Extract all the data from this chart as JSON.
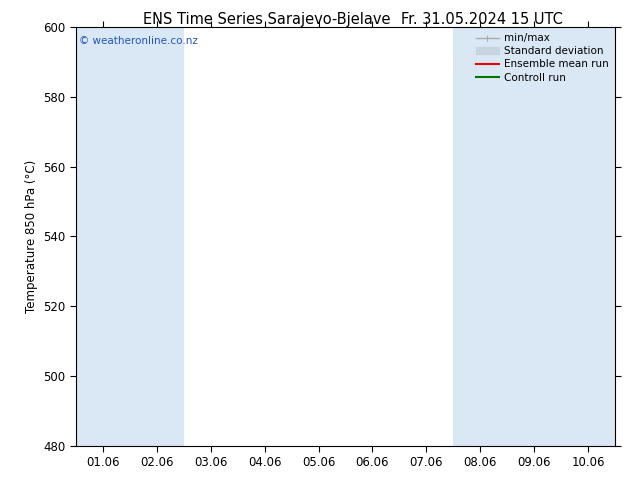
{
  "title": "ENS Time Series Sarajevo-Bjelave",
  "title2": "Fr. 31.05.2024 15 UTC",
  "ylabel": "Temperature 850 hPa (°C)",
  "ylim": [
    480,
    600
  ],
  "yticks": [
    480,
    500,
    520,
    540,
    560,
    580,
    600
  ],
  "x_labels": [
    "01.06",
    "02.06",
    "03.06",
    "04.06",
    "05.06",
    "06.06",
    "07.06",
    "08.06",
    "09.06",
    "10.06"
  ],
  "shaded_x_indices": [
    0,
    1,
    7,
    8,
    9
  ],
  "band_color": "#dae8f5",
  "bg_color": "#ffffff",
  "watermark": "© weatheronline.co.nz",
  "watermark_color": "#2255bb",
  "legend_items": [
    {
      "label": "min/max",
      "color": "#aaaaaa",
      "lw": 1.0
    },
    {
      "label": "Standard deviation",
      "color": "#c8d4e0",
      "lw": 5.0
    },
    {
      "label": "Ensemble mean run",
      "color": "#ee0000",
      "lw": 1.5
    },
    {
      "label": "Controll run",
      "color": "#007700",
      "lw": 1.5
    }
  ],
  "font_size": 8.5,
  "title_fontsize": 10.5,
  "tick_label_fontsize": 8.5
}
